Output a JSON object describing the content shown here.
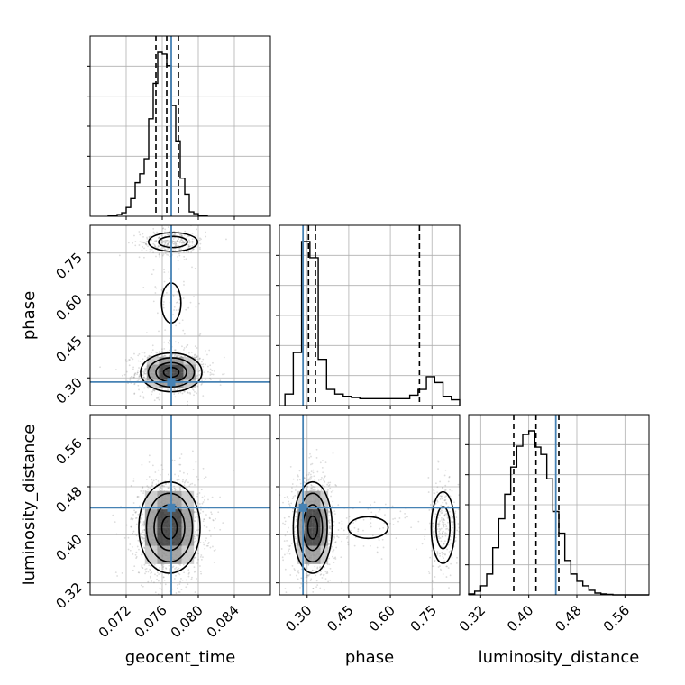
{
  "chart_data": {
    "type": "corner",
    "parameters": [
      {
        "name": "geocent_time",
        "label": "geocent_time",
        "range": [
          0.068,
          0.088
        ],
        "ticks": [
          0.072,
          0.076,
          0.08,
          0.084
        ],
        "tick_labels": [
          "0.072",
          "0.076",
          "0.080",
          "0.084"
        ],
        "truth": 0.077,
        "quantiles": [
          0.0753,
          0.0765,
          0.0778
        ]
      },
      {
        "name": "phase",
        "label": "phase",
        "range": [
          0.2,
          0.85
        ],
        "ticks": [
          0.3,
          0.45,
          0.6,
          0.75
        ],
        "tick_labels": [
          "0.30",
          "0.45",
          "0.60",
          "0.75"
        ],
        "truth": 0.285,
        "quantiles": [
          0.305,
          0.33,
          0.705
        ]
      },
      {
        "name": "luminosity_distance",
        "label": "luminosity_distance",
        "range": [
          0.3,
          0.6
        ],
        "ticks": [
          0.32,
          0.4,
          0.48,
          0.56
        ],
        "tick_labels": [
          "0.32",
          "0.40",
          "0.48",
          "0.56"
        ],
        "truth": 0.445,
        "quantiles": [
          0.375,
          0.412,
          0.45
        ]
      }
    ],
    "histograms": [
      {
        "parameter": "geocent_time",
        "bin_edges": [
          0.07,
          0.0705,
          0.071,
          0.0715,
          0.072,
          0.0725,
          0.073,
          0.0735,
          0.074,
          0.0745,
          0.075,
          0.0755,
          0.076,
          0.0765,
          0.077,
          0.0775,
          0.078,
          0.0785,
          0.079,
          0.0795,
          0.08,
          0.0805,
          0.081
        ],
        "counts": [
          0.5,
          1,
          2,
          4,
          10,
          20,
          38,
          48,
          65,
          110,
          150,
          185,
          183,
          170,
          125,
          85,
          43,
          25,
          5,
          3,
          1,
          0.5
        ]
      },
      {
        "parameter": "phase",
        "bin_edges": [
          0.22,
          0.25,
          0.28,
          0.31,
          0.34,
          0.37,
          0.4,
          0.43,
          0.46,
          0.49,
          0.52,
          0.55,
          0.58,
          0.61,
          0.64,
          0.67,
          0.7,
          0.73,
          0.76,
          0.79,
          0.82,
          0.85
        ],
        "counts": [
          10,
          46,
          142,
          128,
          40,
          14,
          10,
          8,
          7,
          6,
          6,
          6,
          6,
          6,
          6,
          9,
          14,
          25,
          20,
          8,
          5
        ]
      },
      {
        "parameter": "luminosity_distance",
        "bin_edges": [
          0.3,
          0.31,
          0.32,
          0.33,
          0.34,
          0.35,
          0.36,
          0.37,
          0.38,
          0.39,
          0.4,
          0.41,
          0.42,
          0.43,
          0.44,
          0.45,
          0.46,
          0.47,
          0.48,
          0.49,
          0.5,
          0.51,
          0.52,
          0.53,
          0.54,
          0.55,
          0.56,
          0.57,
          0.58,
          0.59,
          0.6
        ],
        "counts": [
          1,
          4,
          10,
          23,
          52,
          84,
          111,
          141,
          164,
          177,
          181,
          163,
          155,
          128,
          92,
          68,
          38,
          23,
          15,
          10,
          5,
          2,
          1,
          0.5,
          0,
          0,
          0,
          0,
          0,
          0
        ]
      }
    ],
    "density_2d": [
      {
        "x": "geocent_time",
        "y": "phase",
        "modes": [
          {
            "center": [
              0.077,
              0.32
            ],
            "spread": [
              0.0017,
              0.035
            ],
            "weight": 0.72
          },
          {
            "center": [
              0.0772,
              0.79
            ],
            "spread": [
              0.0016,
              0.02
            ],
            "weight": 0.22
          },
          {
            "center": [
              0.077,
              0.57
            ],
            "spread": [
              0.0012,
              0.08
            ],
            "weight": 0.06
          }
        ]
      },
      {
        "x": "geocent_time",
        "y": "luminosity_distance",
        "modes": [
          {
            "center": [
              0.0768,
              0.412
            ],
            "spread": [
              0.0017,
              0.038
            ],
            "weight": 1.0
          }
        ]
      },
      {
        "x": "phase",
        "y": "luminosity_distance",
        "modes": [
          {
            "center": [
              0.32,
              0.412
            ],
            "spread": [
              0.035,
              0.038
            ],
            "weight": 0.74
          },
          {
            "center": [
              0.79,
              0.412
            ],
            "spread": [
              0.025,
              0.035
            ],
            "weight": 0.2
          },
          {
            "center": [
              0.52,
              0.412
            ],
            "spread": [
              0.08,
              0.02
            ],
            "weight": 0.06
          }
        ]
      }
    ],
    "grid": true,
    "colors": {
      "truth": "#4682b4",
      "contour": "#000000",
      "samples": "#808080",
      "grid": "#b0b0b0"
    }
  }
}
